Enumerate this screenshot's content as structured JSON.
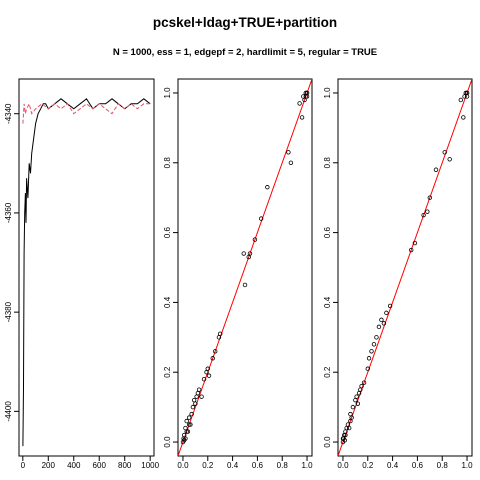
{
  "title": "pcskel+ldag+TRUE+partition",
  "subtitle": "N = 1000, ess = 1, edgepf = 2, hardlimit = 5, regular = TRUE",
  "colors": {
    "trace_black": "#000000",
    "trace_pink": "#DF536B",
    "diag_line": "#FF0000"
  },
  "chart_data": [
    {
      "type": "line",
      "title": "",
      "xlabel": "",
      "ylabel": "",
      "xlim": [
        -30,
        1030
      ],
      "ylim": [
        -4409,
        -4333
      ],
      "x_ticks": [
        0,
        200,
        400,
        600,
        800,
        1000
      ],
      "x_tick_labels": [
        "0",
        "200",
        "400",
        "600",
        "800",
        "1000"
      ],
      "y_ticks": [
        -4340,
        -4360,
        -4380,
        -4400
      ],
      "y_tick_labels": [
        "-4340",
        "-4360",
        "-4380",
        "-4400"
      ],
      "series": [
        {
          "style": "solid",
          "color": "#000000",
          "x": [
            1,
            5,
            10,
            15,
            20,
            25,
            30,
            40,
            50,
            60,
            70,
            80,
            90,
            100,
            120,
            140,
            160,
            180,
            200,
            250,
            300,
            350,
            400,
            450,
            500,
            550,
            600,
            650,
            700,
            750,
            800,
            850,
            900,
            950,
            1000
          ],
          "y": [
            -4407,
            -4395,
            -4368,
            -4360,
            -4356,
            -4362,
            -4353,
            -4357,
            -4350,
            -4352,
            -4348,
            -4346,
            -4344,
            -4342,
            -4340,
            -4339,
            -4338,
            -4338,
            -4339,
            -4338,
            -4337,
            -4338,
            -4339,
            -4338,
            -4337,
            -4339,
            -4338,
            -4338,
            -4337,
            -4338,
            -4339,
            -4338,
            -4338,
            -4337,
            -4338
          ]
        },
        {
          "style": "dashed",
          "color": "#DF536B",
          "x": [
            1,
            10,
            20,
            30,
            50,
            70,
            100,
            150,
            200,
            250,
            300,
            350,
            400,
            450,
            500,
            550,
            600,
            650,
            700,
            750,
            800,
            850,
            900,
            950,
            1000
          ],
          "y": [
            -4342,
            -4338,
            -4340,
            -4339,
            -4338,
            -4340,
            -4339,
            -4338,
            -4339,
            -4338,
            -4339,
            -4338,
            -4340,
            -4339,
            -4338,
            -4339,
            -4338,
            -4339,
            -4340,
            -4338,
            -4339,
            -4338,
            -4339,
            -4338,
            -4338
          ]
        }
      ]
    },
    {
      "type": "scatter",
      "title": "",
      "xlabel": "",
      "ylabel": "",
      "xlim": [
        -0.04,
        1.04
      ],
      "ylim": [
        -0.04,
        1.04
      ],
      "x_ticks": [
        0,
        0.2,
        0.4,
        0.6,
        0.8,
        1
      ],
      "x_tick_labels": [
        "0.0",
        "0.2",
        "0.4",
        "0.6",
        "0.8",
        "1.0"
      ],
      "y_ticks": [
        0,
        0.2,
        0.4,
        0.6,
        0.8,
        1
      ],
      "y_tick_labels": [
        "0.0",
        "0.2",
        "0.4",
        "0.6",
        "0.8",
        "1.0"
      ],
      "reference_line": {
        "slope": 1,
        "intercept": 0,
        "color": "#FF0000"
      },
      "points": {
        "x": [
          0.0,
          0.005,
          0.01,
          0.01,
          0.02,
          0.02,
          0.03,
          0.03,
          0.04,
          0.05,
          0.05,
          0.06,
          0.07,
          0.08,
          0.09,
          0.1,
          0.11,
          0.12,
          0.13,
          0.15,
          0.17,
          0.19,
          0.2,
          0.21,
          0.24,
          0.26,
          0.29,
          0.3,
          0.49,
          0.53,
          0.54,
          0.58,
          0.5,
          0.63,
          0.68,
          0.85,
          0.87,
          0.94,
          0.96,
          0.97,
          0.98,
          0.99,
          0.99,
          1.0,
          1.0,
          1.0
        ],
        "y": [
          0.0,
          0.01,
          0.005,
          0.02,
          0.01,
          0.04,
          0.03,
          0.06,
          0.03,
          0.05,
          0.07,
          0.05,
          0.08,
          0.1,
          0.12,
          0.11,
          0.13,
          0.14,
          0.15,
          0.13,
          0.18,
          0.2,
          0.21,
          0.19,
          0.24,
          0.26,
          0.3,
          0.31,
          0.54,
          0.53,
          0.54,
          0.58,
          0.45,
          0.64,
          0.73,
          0.83,
          0.8,
          0.97,
          0.93,
          0.99,
          0.98,
          1.0,
          0.99,
          1.0,
          1.0,
          0.99
        ]
      }
    },
    {
      "type": "scatter",
      "title": "",
      "xlabel": "",
      "ylabel": "",
      "xlim": [
        -0.04,
        1.04
      ],
      "ylim": [
        -0.04,
        1.04
      ],
      "x_ticks": [
        0,
        0.2,
        0.4,
        0.6,
        0.8,
        1
      ],
      "x_tick_labels": [
        "0.0",
        "0.2",
        "0.4",
        "0.6",
        "0.8",
        "1.0"
      ],
      "y_ticks": [
        0,
        0.2,
        0.4,
        0.6,
        0.8,
        1
      ],
      "y_tick_labels": [
        "0.0",
        "0.2",
        "0.4",
        "0.6",
        "0.8",
        "1.0"
      ],
      "reference_line": {
        "slope": 1,
        "intercept": 0,
        "color": "#FF0000"
      },
      "points": {
        "x": [
          0.0,
          0.005,
          0.01,
          0.015,
          0.02,
          0.03,
          0.04,
          0.05,
          0.06,
          0.07,
          0.08,
          0.1,
          0.11,
          0.12,
          0.13,
          0.14,
          0.15,
          0.17,
          0.2,
          0.21,
          0.23,
          0.25,
          0.27,
          0.29,
          0.31,
          0.33,
          0.35,
          0.38,
          0.55,
          0.58,
          0.65,
          0.68,
          0.7,
          0.75,
          0.82,
          0.86,
          0.95,
          0.97,
          0.98,
          0.99,
          1.0,
          1.0,
          1.0,
          0.0,
          0.02,
          0.06
        ],
        "y": [
          0.0,
          0.01,
          0.02,
          0.005,
          0.03,
          0.04,
          0.05,
          0.04,
          0.06,
          0.07,
          0.1,
          0.12,
          0.13,
          0.11,
          0.14,
          0.15,
          0.16,
          0.17,
          0.21,
          0.24,
          0.26,
          0.28,
          0.3,
          0.33,
          0.35,
          0.34,
          0.37,
          0.39,
          0.55,
          0.57,
          0.65,
          0.66,
          0.7,
          0.78,
          0.83,
          0.81,
          0.98,
          0.93,
          0.99,
          1.0,
          1.0,
          0.99,
          1.0,
          0.01,
          0.02,
          0.08
        ]
      }
    }
  ]
}
